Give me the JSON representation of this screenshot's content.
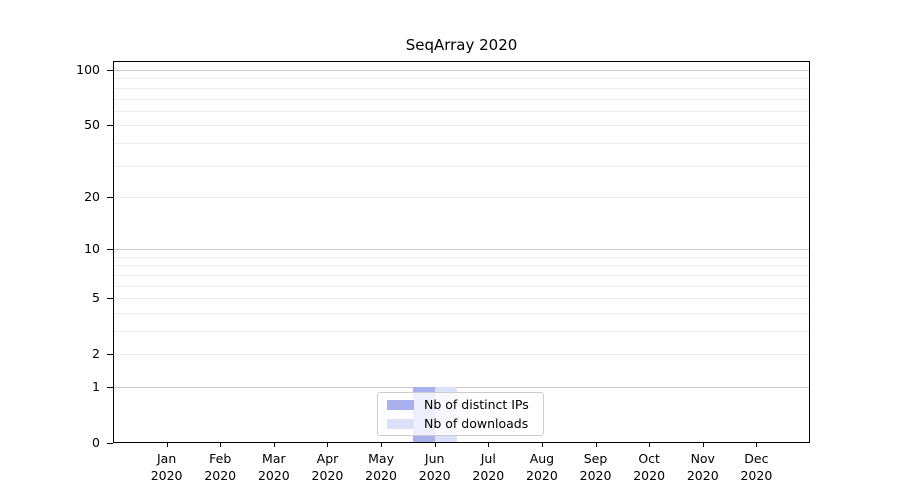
{
  "chart_data": {
    "type": "bar",
    "title": "SeqArray 2020",
    "categories": [
      "Jan",
      "Feb",
      "Mar",
      "Apr",
      "May",
      "Jun",
      "Jul",
      "Aug",
      "Sep",
      "Oct",
      "Nov",
      "Dec"
    ],
    "x_tick_year": "2020",
    "series": [
      {
        "name": "Nb of distinct IPs",
        "color": "#a9b0ee",
        "values": [
          0,
          0,
          0,
          0,
          0,
          1,
          0,
          0,
          0,
          0,
          0,
          0
        ]
      },
      {
        "name": "Nb of downloads",
        "color": "#dde0f9",
        "values": [
          0,
          0,
          0,
          0,
          0,
          1,
          0,
          0,
          0,
          0,
          0,
          0
        ]
      }
    ],
    "y_axis": {
      "scale": "log1p",
      "ticks": [
        100,
        50,
        20,
        10,
        5,
        2,
        1,
        0
      ],
      "max": 112,
      "major_gridlines": [
        0,
        1,
        10,
        100
      ],
      "minor_gridlines": [
        2,
        3,
        4,
        5,
        6,
        7,
        8,
        9,
        20,
        30,
        40,
        50,
        60,
        70,
        80,
        90
      ]
    },
    "legend": {
      "position": "bottom-center"
    },
    "grid": true,
    "xlabel": "",
    "ylabel": ""
  },
  "colors": {
    "background": "#ffffff",
    "text": "#000000",
    "spine": "#000000",
    "major_grid": "#c9c9c9",
    "minor_grid": "#ededed",
    "legend_border": "#cccccc"
  }
}
